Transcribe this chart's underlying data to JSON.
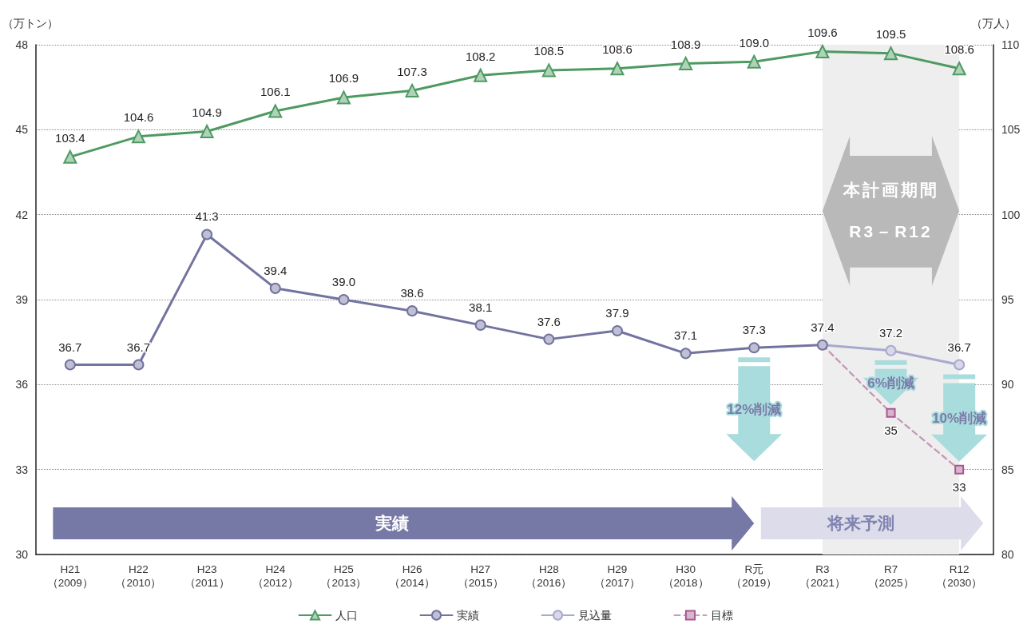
{
  "chart_data": {
    "type": "line",
    "categories": [
      "H21（2009）",
      "H22（2010）",
      "H23（2011）",
      "H24（2012）",
      "H25（2013）",
      "H26（2014）",
      "H27（2015）",
      "H28（2016）",
      "H29（2017）",
      "H30（2018）",
      "R元（2019）",
      "R3（2021）",
      "R7（2025）",
      "R12（2030）"
    ],
    "ylabel": "（万トン）",
    "y2label": "（万人）",
    "ylim": [
      30,
      48
    ],
    "yticks": [
      30,
      33,
      36,
      39,
      42,
      45,
      48
    ],
    "y2lim": [
      80,
      110
    ],
    "y2ticks": [
      80,
      85,
      90,
      95,
      100,
      105,
      110
    ],
    "grid": "y",
    "legend": "bottom",
    "series": [
      {
        "name": "人口",
        "color": "#4e9a62",
        "axis": "y2",
        "marker": "triangle",
        "line_style": "solid",
        "values": [
          103.4,
          104.6,
          104.9,
          106.1,
          106.9,
          107.3,
          108.2,
          108.5,
          108.6,
          108.9,
          109.0,
          109.6,
          109.5,
          108.6
        ],
        "value_labels": [
          "103.4",
          "104.6",
          "104.9",
          "106.1",
          "106.9",
          "107.3",
          "108.2",
          "108.5",
          "108.6",
          "108.9",
          "109.0",
          "109.6",
          "109.5",
          "108.6"
        ]
      },
      {
        "name": "実績",
        "color": "#72739f",
        "marker": "circle",
        "line_style": "solid",
        "values": [
          36.7,
          36.7,
          41.3,
          39.4,
          39.0,
          38.6,
          38.1,
          37.6,
          37.9,
          37.1,
          37.3,
          37.4,
          null,
          null
        ],
        "value_labels": [
          "36.7",
          "36.7",
          "41.3",
          "39.4",
          "39.0",
          "38.6",
          "38.1",
          "37.6",
          "37.9",
          "37.1",
          "37.3",
          "37.4",
          null,
          null
        ]
      },
      {
        "name": "見込量",
        "color": "#a9a9cf",
        "marker": "circle",
        "line_style": "solid",
        "values": [
          null,
          null,
          null,
          null,
          null,
          null,
          null,
          null,
          null,
          null,
          null,
          37.4,
          37.2,
          36.7
        ],
        "value_labels": [
          null,
          null,
          null,
          null,
          null,
          null,
          null,
          null,
          null,
          null,
          null,
          null,
          "37.2",
          "36.7"
        ]
      },
      {
        "name": "目標",
        "color": "#a8588f",
        "marker": "square",
        "line_style": "dashed",
        "values": [
          null,
          null,
          null,
          null,
          null,
          null,
          null,
          null,
          null,
          null,
          null,
          37.4,
          35,
          33
        ],
        "value_labels": [
          null,
          null,
          null,
          null,
          null,
          null,
          null,
          null,
          null,
          null,
          null,
          null,
          "35",
          "33"
        ]
      }
    ],
    "bands": [
      {
        "axis": "x",
        "from": "R3（2021）",
        "to": "R12（2030）",
        "label": "本計画期間\nR3－R12",
        "color": "#eeeeee"
      }
    ],
    "annotations": [
      "実績",
      "将来予測",
      "12%削減",
      "6%削減",
      "10%削減"
    ]
  }
}
